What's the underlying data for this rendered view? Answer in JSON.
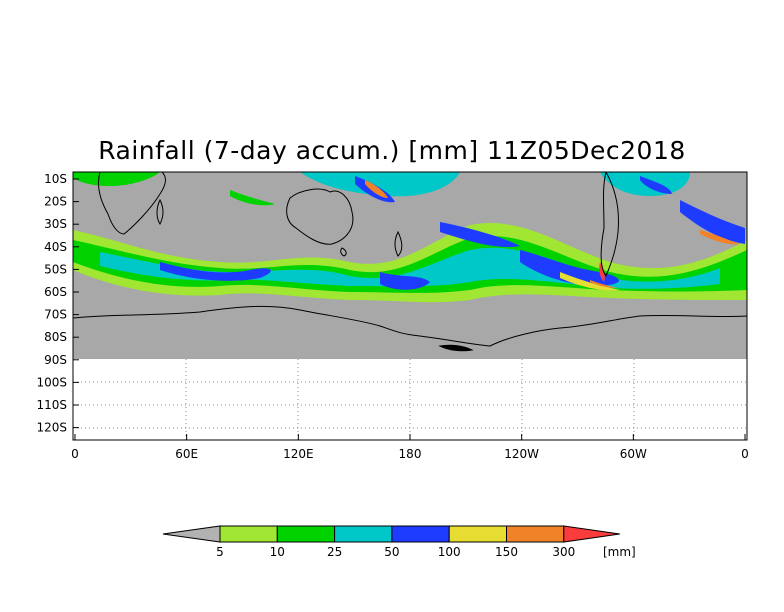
{
  "title": "Rainfall (7-day accum.) [mm] 11Z05Dec2018",
  "map": {
    "lat_labels": [
      "10S",
      "20S",
      "30S",
      "40S",
      "50S",
      "60S",
      "70S",
      "80S",
      "90S",
      "100S",
      "110S",
      "120S"
    ],
    "lon_labels": [
      "0",
      "60E",
      "120E",
      "180",
      "120W",
      "60W",
      "0"
    ],
    "background_color": "#a8a8a8",
    "coastline_color": "#000000",
    "grid": "dotted"
  },
  "colorbar": {
    "levels": [
      "5",
      "10",
      "25",
      "50",
      "100",
      "150",
      "300"
    ],
    "unit": "[mm]",
    "colors": [
      "#b2b2b2",
      "#a0e632",
      "#00d200",
      "#00c8c8",
      "#1e3cff",
      "#e6dc32",
      "#f08228",
      "#fa3c3c"
    ]
  }
}
